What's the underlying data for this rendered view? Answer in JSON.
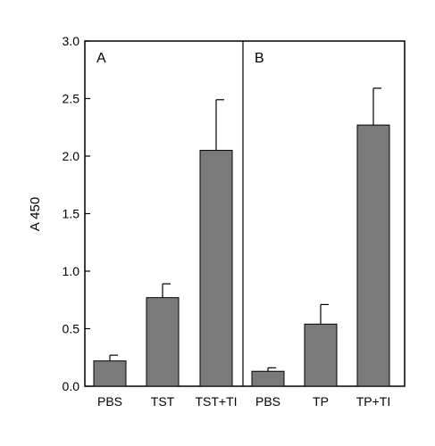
{
  "chart_data": {
    "type": "bar",
    "ylabel": "A 450",
    "ylim": [
      0,
      3.0
    ],
    "yticks": [
      "0.0",
      "0.5",
      "1.0",
      "1.5",
      "2.0",
      "2.5",
      "3.0"
    ],
    "grid": false,
    "bar_color": "#7a7a7a",
    "panels": [
      {
        "label": "A",
        "categories": [
          "PBS",
          "TST",
          "TST+TI"
        ],
        "values": [
          0.22,
          0.77,
          2.05
        ],
        "errors": [
          0.05,
          0.12,
          0.44
        ]
      },
      {
        "label": "B",
        "categories": [
          "PBS",
          "TP",
          "TP+TI"
        ],
        "values": [
          0.13,
          0.54,
          2.27
        ],
        "errors": [
          0.03,
          0.17,
          0.32
        ]
      }
    ]
  }
}
